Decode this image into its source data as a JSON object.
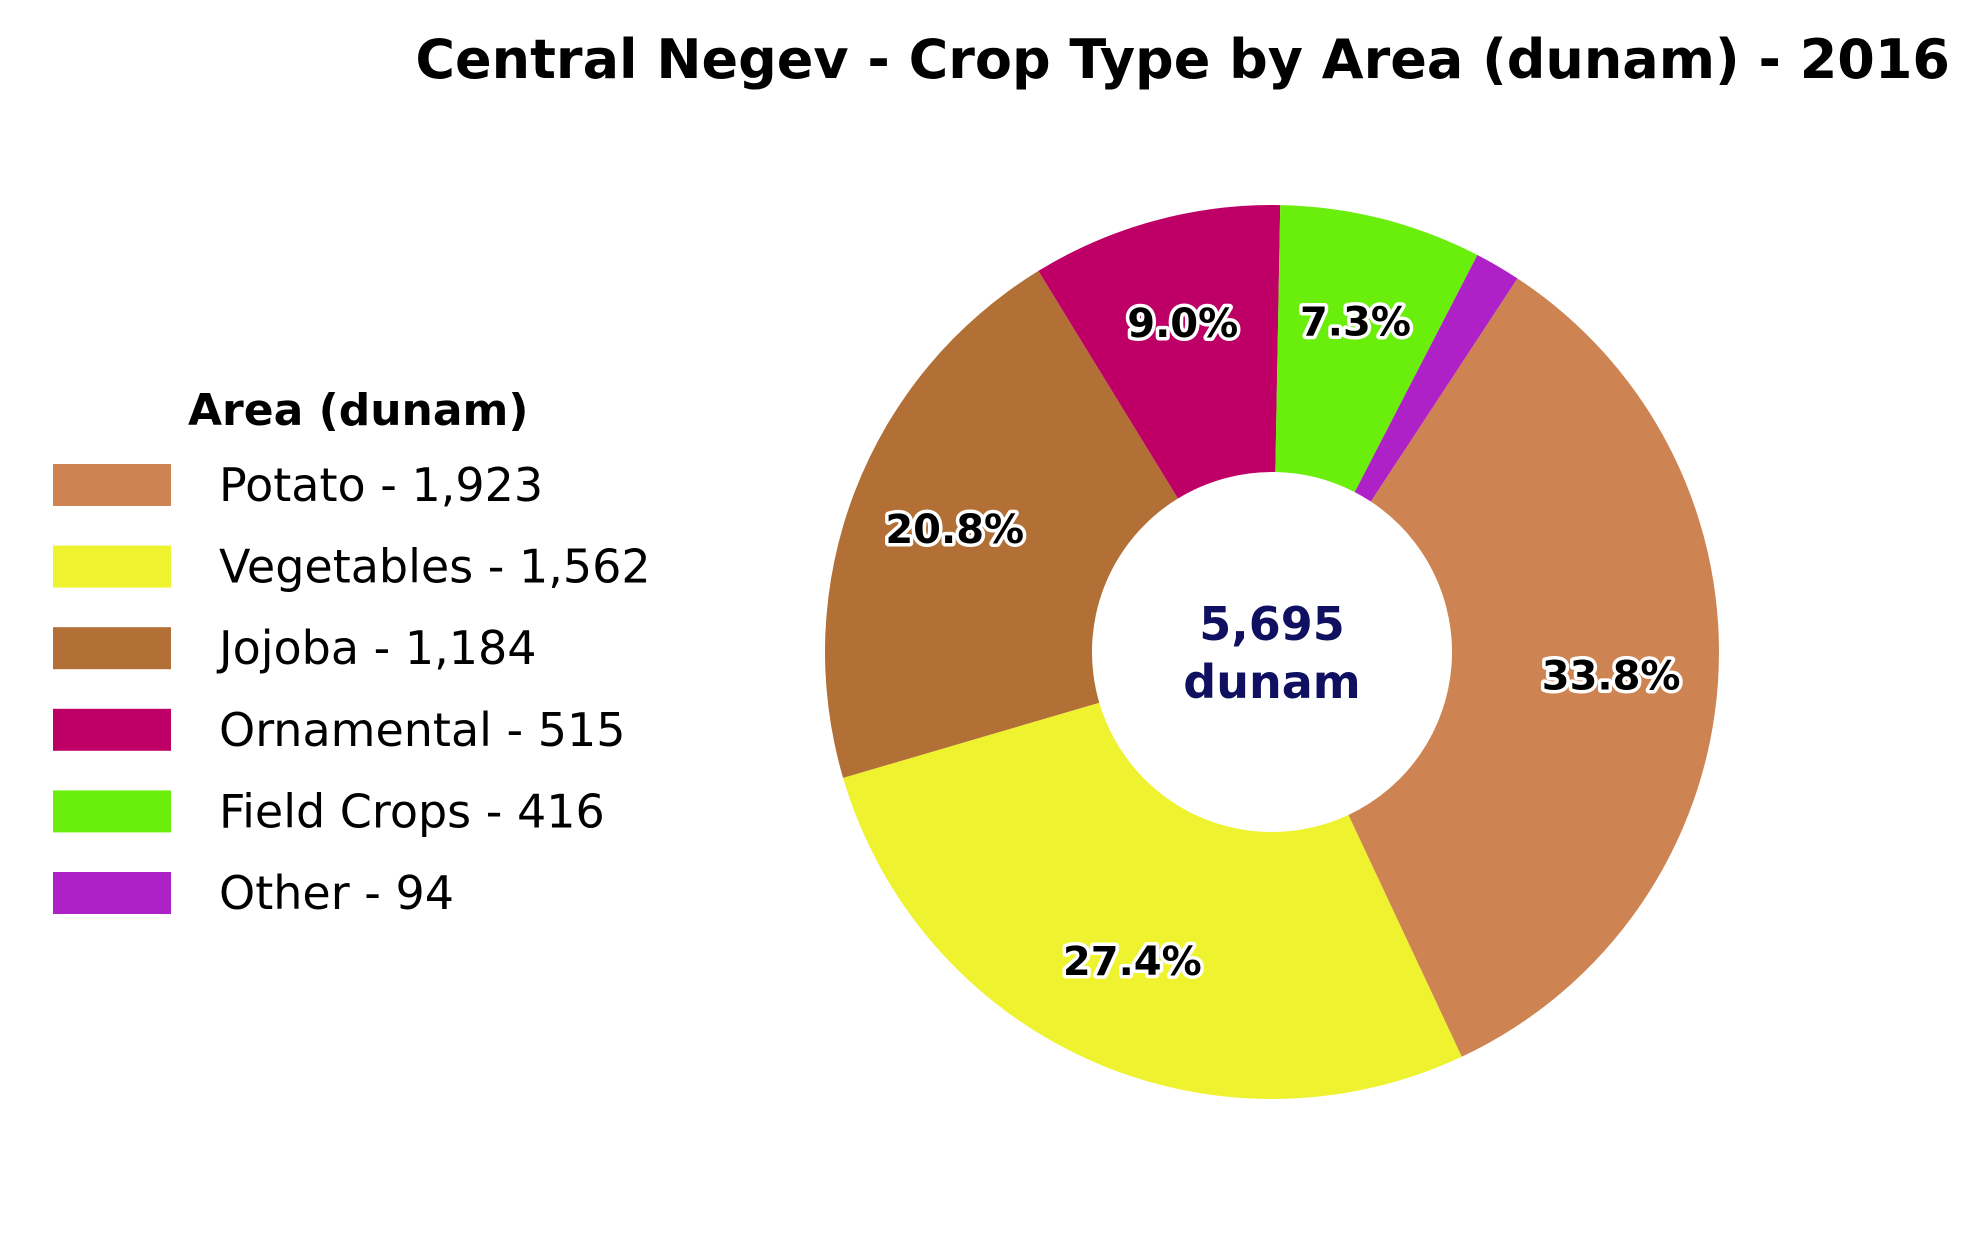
{
  "chart_data": {
    "type": "pie",
    "title": "Central Negev - Crop Type by Area (dunam) - 2016",
    "legend_title": "Area (dunam)",
    "legend_position": "left",
    "center_label": {
      "value": "5,695",
      "unit": "dunam"
    },
    "series": [
      {
        "name": "Potato",
        "value": 1923,
        "value_label": "1,923",
        "legend_label": "Potato - 1,923",
        "percent_label": "33.8%",
        "color": "#CD8452"
      },
      {
        "name": "Vegetables",
        "value": 1562,
        "value_label": "1,562",
        "legend_label": "Vegetables - 1,562",
        "percent_label": "27.4%",
        "color": "#EEF22F"
      },
      {
        "name": "Jojoba",
        "value": 1184,
        "value_label": "1,184",
        "legend_label": "Jojoba - 1,184",
        "percent_label": "20.8%",
        "color": "#B27036"
      },
      {
        "name": "Ornamental",
        "value": 515,
        "value_label": "515",
        "legend_label": "Ornamental - 515",
        "percent_label": "9.0%",
        "color": "#BE0066"
      },
      {
        "name": "Field Crops",
        "value": 416,
        "value_label": "416",
        "legend_label": "Field Crops - 416",
        "percent_label": "7.3%",
        "color": "#6AEE0C"
      },
      {
        "name": "Other",
        "value": 94,
        "value_label": "94",
        "legend_label": "Other - 94",
        "percent_label": "",
        "color": "#AE21C6"
      }
    ]
  }
}
